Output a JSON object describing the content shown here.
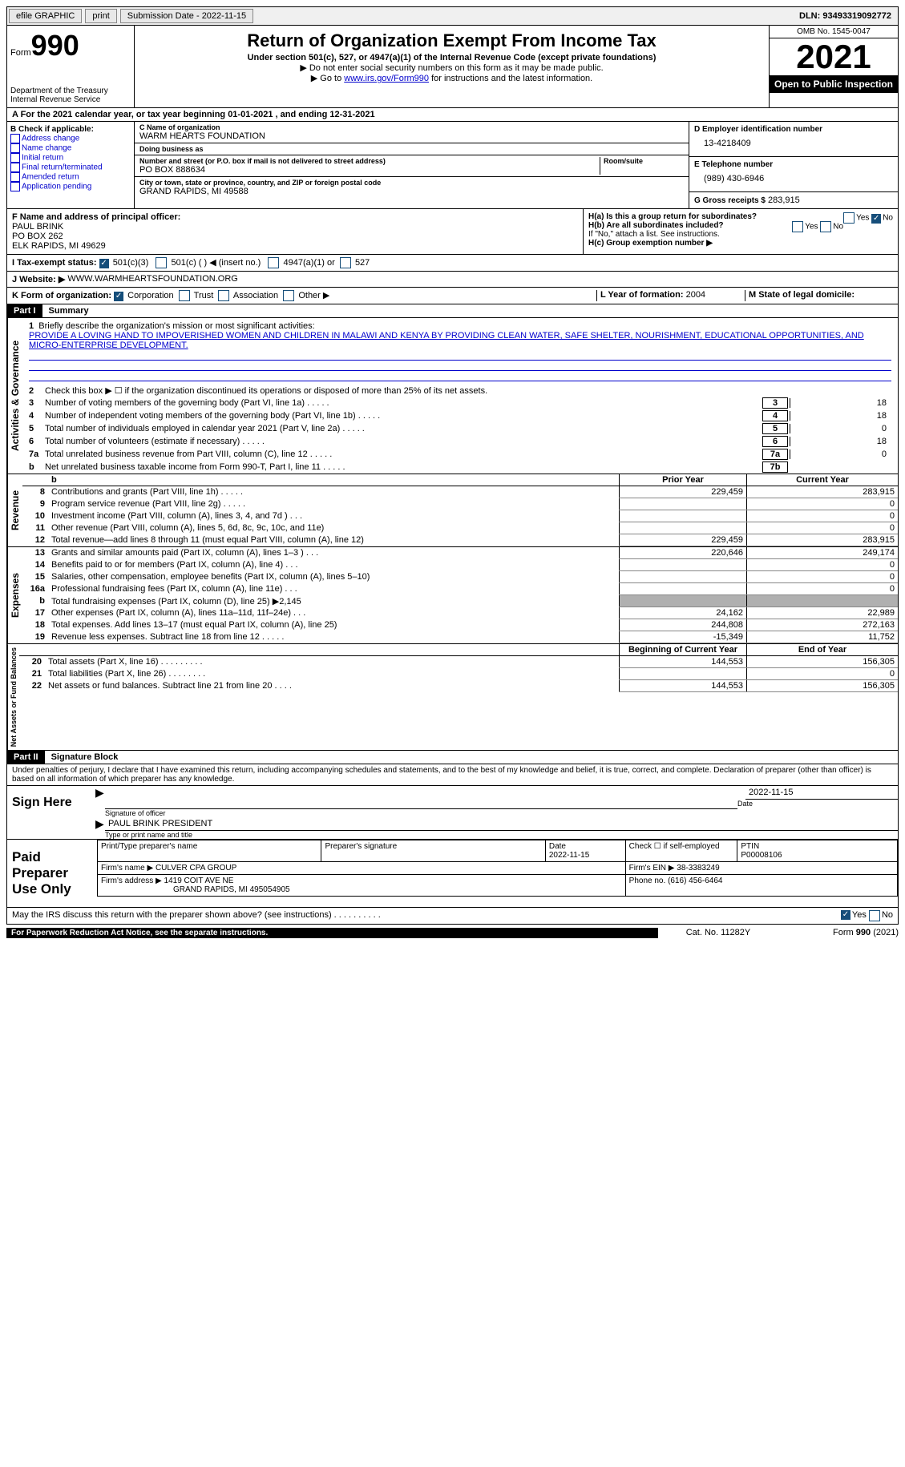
{
  "topbar": {
    "efile": "efile GRAPHIC",
    "print": "print",
    "sub_label": "Submission Date - 2022-11-15",
    "dln": "DLN: 93493319092772"
  },
  "header": {
    "form_word": "Form",
    "form_num": "990",
    "dept": "Department of the Treasury\nInternal Revenue Service",
    "title": "Return of Organization Exempt From Income Tax",
    "subtitle": "Under section 501(c), 527, or 4947(a)(1) of the Internal Revenue Code (except private foundations)",
    "note1": "▶ Do not enter social security numbers on this form as it may be made public.",
    "note2_pre": "▶ Go to ",
    "note2_link": "www.irs.gov/Form990",
    "note2_post": " for instructions and the latest information.",
    "omb": "OMB No. 1545-0047",
    "year": "2021",
    "inspect": "Open to Public Inspection"
  },
  "rowA": "A For the 2021 calendar year, or tax year beginning 01-01-2021    , and ending 12-31-2021",
  "colB": {
    "head": "B Check if applicable:",
    "opts": [
      "Address change",
      "Name change",
      "Initial return",
      "Final return/terminated",
      "Amended return",
      "Application pending"
    ]
  },
  "colC": {
    "name_label": "C Name of organization",
    "name": "WARM HEARTS FOUNDATION",
    "dba_label": "Doing business as",
    "dba": "",
    "street_label": "Number and street (or P.O. box if mail is not delivered to street address)",
    "room_label": "Room/suite",
    "street": "PO BOX 888634",
    "city_label": "City or town, state or province, country, and ZIP or foreign postal code",
    "city": "GRAND RAPIDS, MI  49588"
  },
  "colD": {
    "ein_label": "D Employer identification number",
    "ein": "13-4218409",
    "phone_label": "E Telephone number",
    "phone": "(989) 430-6946",
    "gross_label": "G Gross receipts $",
    "gross": "283,915"
  },
  "rowF": {
    "label": "F  Name and address of principal officer:",
    "name": "PAUL BRINK",
    "addr1": "PO BOX 262",
    "addr2": "ELK RAPIDS, MI  49629"
  },
  "rowH": {
    "a": "H(a)  Is this a group return for subordinates?",
    "b": "H(b)  Are all subordinates included?",
    "b_note": "If \"No,\" attach a list. See instructions.",
    "c": "H(c)  Group exemption number ▶",
    "yes": "Yes",
    "no": "No"
  },
  "rowI": {
    "label": "I   Tax-exempt status:",
    "o1": "501(c)(3)",
    "o2": "501(c) (  ) ◀ (insert no.)",
    "o3": "4947(a)(1) or",
    "o4": "527"
  },
  "rowJ": {
    "label": "J   Website: ▶",
    "val": "WWW.WARMHEARTSFOUNDATION.ORG"
  },
  "rowK": {
    "label": "K Form of organization:",
    "o1": "Corporation",
    "o2": "Trust",
    "o3": "Association",
    "o4": "Other ▶",
    "l_label": "L Year of formation:",
    "l_val": "2004",
    "m_label": "M State of legal domicile:",
    "m_val": ""
  },
  "part1": {
    "tag": "Part I",
    "title": "Summary"
  },
  "mission": {
    "num": "1",
    "label": "Briefly describe the organization's mission or most significant activities:",
    "text": "PROVIDE A LOVING HAND TO IMPOVERISHED WOMEN AND CHILDREN IN MALAWI AND KENYA BY PROVIDING CLEAN WATER, SAFE SHELTER, NOURISHMENT, EDUCATIONAL OPPORTUNITIES, AND MICRO-ENTERPRISE DEVELOPMENT."
  },
  "gov_lines": [
    {
      "n": "2",
      "t": "Check this box ▶ ☐ if the organization discontinued its operations or disposed of more than 25% of its net assets.",
      "box": "",
      "val": ""
    },
    {
      "n": "3",
      "t": "Number of voting members of the governing body (Part VI, line 1a)",
      "box": "3",
      "val": "18"
    },
    {
      "n": "4",
      "t": "Number of independent voting members of the governing body (Part VI, line 1b)",
      "box": "4",
      "val": "18"
    },
    {
      "n": "5",
      "t": "Total number of individuals employed in calendar year 2021 (Part V, line 2a)",
      "box": "5",
      "val": "0"
    },
    {
      "n": "6",
      "t": "Total number of volunteers (estimate if necessary)",
      "box": "6",
      "val": "18"
    },
    {
      "n": "7a",
      "t": "Total unrelated business revenue from Part VIII, column (C), line 12",
      "box": "7a",
      "val": "0"
    },
    {
      "n": "b",
      "t": "Net unrelated business taxable income from Form 990-T, Part I, line 11",
      "box": "7b",
      "val": ""
    }
  ],
  "fin_headers": {
    "prior": "Prior Year",
    "curr": "Current Year"
  },
  "revenue": [
    {
      "n": "8",
      "t": "Contributions and grants (Part VIII, line 1h)   .    .    .    .    .",
      "p": "229,459",
      "c": "283,915"
    },
    {
      "n": "9",
      "t": "Program service revenue (Part VIII, line 2g)   .    .    .    .    .",
      "p": "",
      "c": "0"
    },
    {
      "n": "10",
      "t": "Investment income (Part VIII, column (A), lines 3, 4, and 7d )   .    .    .",
      "p": "",
      "c": "0"
    },
    {
      "n": "11",
      "t": "Other revenue (Part VIII, column (A), lines 5, 6d, 8c, 9c, 10c, and 11e)",
      "p": "",
      "c": "0"
    },
    {
      "n": "12",
      "t": "Total revenue—add lines 8 through 11 (must equal Part VIII, column (A), line 12)",
      "p": "229,459",
      "c": "283,915"
    }
  ],
  "expenses": [
    {
      "n": "13",
      "t": "Grants and similar amounts paid (Part IX, column (A), lines 1–3 )   .    .    .",
      "p": "220,646",
      "c": "249,174"
    },
    {
      "n": "14",
      "t": "Benefits paid to or for members (Part IX, column (A), line 4)   .    .    .",
      "p": "",
      "c": "0"
    },
    {
      "n": "15",
      "t": "Salaries, other compensation, employee benefits (Part IX, column (A), lines 5–10)",
      "p": "",
      "c": "0"
    },
    {
      "n": "16a",
      "t": "Professional fundraising fees (Part IX, column (A), line 11e)   .    .    .",
      "p": "",
      "c": "0"
    },
    {
      "n": "b",
      "t": "Total fundraising expenses (Part IX, column (D), line 25) ▶2,145",
      "p": "shaded",
      "c": "shaded"
    },
    {
      "n": "17",
      "t": "Other expenses (Part IX, column (A), lines 11a–11d, 11f–24e)   .    .    .",
      "p": "24,162",
      "c": "22,989"
    },
    {
      "n": "18",
      "t": "Total expenses. Add lines 13–17 (must equal Part IX, column (A), line 25)",
      "p": "244,808",
      "c": "272,163"
    },
    {
      "n": "19",
      "t": "Revenue less expenses. Subtract line 18 from line 12   .    .    .    .    .",
      "p": "-15,349",
      "c": "11,752"
    }
  ],
  "net_headers": {
    "prior": "Beginning of Current Year",
    "curr": "End of Year"
  },
  "netassets": [
    {
      "n": "20",
      "t": "Total assets (Part X, line 16)   .    .    .    .    .    .    .    .    .",
      "p": "144,553",
      "c": "156,305"
    },
    {
      "n": "21",
      "t": "Total liabilities (Part X, line 26)   .    .    .    .    .    .    .    .",
      "p": "",
      "c": "0"
    },
    {
      "n": "22",
      "t": "Net assets or fund balances. Subtract line 21 from line 20   .    .    .    .",
      "p": "144,553",
      "c": "156,305"
    }
  ],
  "tabs": {
    "gov": "Activities & Governance",
    "rev": "Revenue",
    "exp": "Expenses",
    "net": "Net Assets or Fund Balances"
  },
  "part2": {
    "tag": "Part II",
    "title": "Signature Block",
    "decl": "Under penalties of perjury, I declare that I have examined this return, including accompanying schedules and statements, and to the best of my knowledge and belief, it is true, correct, and complete. Declaration of preparer (other than officer) is based on all information of which preparer has any knowledge."
  },
  "sign": {
    "here": "Sign Here",
    "sig_label": "Signature of officer",
    "date": "2022-11-15",
    "date_label": "Date",
    "name": "PAUL BRINK  PRESIDENT",
    "name_label": "Type or print name and title"
  },
  "prep": {
    "label": "Paid Preparer Use Only",
    "h1": "Print/Type preparer's name",
    "h2": "Preparer's signature",
    "h3": "Date",
    "h3v": "2022-11-15",
    "h4": "Check ☐ if self-employed",
    "h5": "PTIN",
    "h5v": "P00008106",
    "firm_label": "Firm's name    ▶",
    "firm": "CULVER CPA GROUP",
    "ein_label": "Firm's EIN ▶",
    "ein": "38-3383249",
    "addr_label": "Firm's address ▶",
    "addr1": "1419 COIT AVE NE",
    "addr2": "GRAND RAPIDS, MI  495054905",
    "phone_label": "Phone no.",
    "phone": "(616) 456-6464"
  },
  "discuss": {
    "text": "May the IRS discuss this return with the preparer shown above? (see instructions)   .    .    .    .    .    .    .    .    .    .",
    "yes": "Yes",
    "no": "No"
  },
  "footer": {
    "l": "For Paperwork Reduction Act Notice, see the separate instructions.",
    "m": "Cat. No. 11282Y",
    "r": "Form 990 (2021)"
  }
}
